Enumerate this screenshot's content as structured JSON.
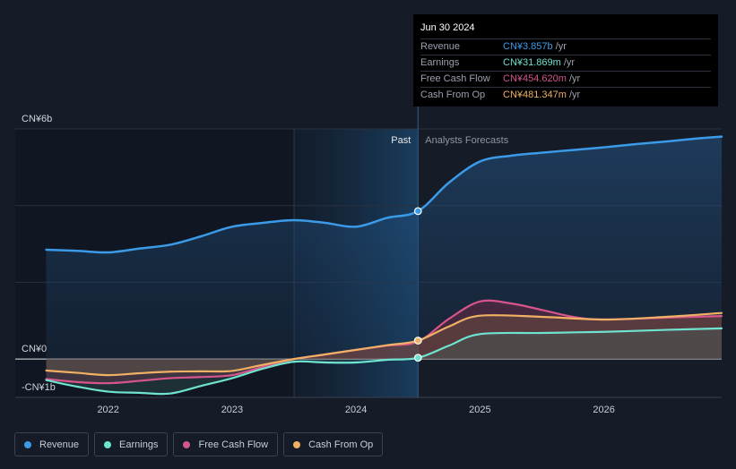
{
  "tooltip": {
    "date": "Jun 30 2024",
    "rows": [
      {
        "label": "Revenue",
        "value": "CN¥3.857b",
        "unit": "/yr",
        "color": "#3b9be8"
      },
      {
        "label": "Earnings",
        "value": "CN¥31.869m",
        "unit": "/yr",
        "color": "#6fe3cf"
      },
      {
        "label": "Free Cash Flow",
        "value": "CN¥454.620m",
        "unit": "/yr",
        "color": "#d6558c"
      },
      {
        "label": "Cash From Op",
        "value": "CN¥481.347m",
        "unit": "/yr",
        "color": "#f0b164"
      }
    ]
  },
  "legend": [
    {
      "label": "Revenue",
      "color": "#3b9be8"
    },
    {
      "label": "Earnings",
      "color": "#6fe3cf"
    },
    {
      "label": "Free Cash Flow",
      "color": "#d6558c"
    },
    {
      "label": "Cash From Op",
      "color": "#f0b164"
    }
  ],
  "chart_data": {
    "type": "line",
    "ylim": [
      -1,
      6
    ],
    "y_tick_labels": [
      "CN¥6b",
      "CN¥0",
      "-CN¥1b"
    ],
    "x_tick_labels": [
      "2022",
      "2023",
      "2024",
      "2025",
      "2026"
    ],
    "x_ticks": [
      2022,
      2023,
      2024,
      2025,
      2026
    ],
    "xlim": [
      2021.25,
      2026.95
    ],
    "divider_x": 2024.5,
    "shade_start_x": 2023.5,
    "past_label": "Past",
    "forecast_label": "Analysts Forecasts",
    "series": [
      {
        "name": "Revenue",
        "color": "#3b9be8",
        "x": [
          2021.5,
          2021.75,
          2022.0,
          2022.25,
          2022.5,
          2022.75,
          2023.0,
          2023.25,
          2023.5,
          2023.75,
          2024.0,
          2024.25,
          2024.5,
          2024.75,
          2025.0,
          2025.25,
          2025.5,
          2025.75,
          2026.0,
          2026.25,
          2026.5,
          2026.75,
          2026.95
        ],
        "values": [
          2.85,
          2.82,
          2.78,
          2.88,
          2.98,
          3.2,
          3.45,
          3.55,
          3.62,
          3.55,
          3.45,
          3.68,
          3.857,
          4.6,
          5.15,
          5.3,
          5.38,
          5.45,
          5.52,
          5.6,
          5.67,
          5.75,
          5.8
        ]
      },
      {
        "name": "Earnings",
        "color": "#6fe3cf",
        "x": [
          2021.5,
          2021.75,
          2022.0,
          2022.25,
          2022.5,
          2022.75,
          2023.0,
          2023.25,
          2023.5,
          2023.75,
          2024.0,
          2024.25,
          2024.5,
          2024.75,
          2025.0,
          2025.5,
          2026.0,
          2026.5,
          2026.95
        ],
        "values": [
          -0.55,
          -0.72,
          -0.85,
          -0.88,
          -0.9,
          -0.7,
          -0.5,
          -0.25,
          -0.07,
          -0.09,
          -0.09,
          -0.02,
          0.032,
          0.35,
          0.65,
          0.68,
          0.71,
          0.76,
          0.8
        ]
      },
      {
        "name": "Free Cash Flow",
        "color": "#d6558c",
        "x": [
          2021.5,
          2021.75,
          2022.0,
          2022.25,
          2022.5,
          2022.75,
          2023.0,
          2023.25,
          2023.5,
          2023.75,
          2024.0,
          2024.25,
          2024.5,
          2024.75,
          2025.0,
          2025.25,
          2025.5,
          2025.75,
          2026.0,
          2026.5,
          2026.95
        ],
        "values": [
          -0.52,
          -0.6,
          -0.63,
          -0.57,
          -0.5,
          -0.47,
          -0.42,
          -0.2,
          0.0,
          0.12,
          0.24,
          0.35,
          0.455,
          1.05,
          1.5,
          1.45,
          1.28,
          1.1,
          1.03,
          1.08,
          1.12
        ]
      },
      {
        "name": "Cash From Op",
        "color": "#f0b164",
        "x": [
          2021.5,
          2021.75,
          2022.0,
          2022.25,
          2022.5,
          2022.75,
          2023.0,
          2023.25,
          2023.5,
          2023.75,
          2024.0,
          2024.25,
          2024.5,
          2024.75,
          2025.0,
          2025.5,
          2026.0,
          2026.5,
          2026.95
        ],
        "values": [
          -0.3,
          -0.36,
          -0.42,
          -0.37,
          -0.33,
          -0.32,
          -0.31,
          -0.15,
          0.0,
          0.12,
          0.24,
          0.36,
          0.481,
          0.85,
          1.13,
          1.1,
          1.03,
          1.1,
          1.2
        ]
      }
    ],
    "highlight_values": [
      {
        "series": "Revenue",
        "x": 2024.5,
        "value": 3.857
      },
      {
        "series": "Earnings",
        "x": 2024.5,
        "value": 0.032
      },
      {
        "series": "Cash From Op",
        "x": 2024.5,
        "value": 0.481
      }
    ]
  }
}
